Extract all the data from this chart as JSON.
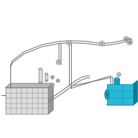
{
  "bg_color": "#ffffff",
  "line_color": "#999999",
  "line_color_dark": "#777777",
  "highlight_color": "#29b8d8",
  "highlight_mid": "#1a9ab8",
  "highlight_dark": "#0e7a96",
  "part_color": "#bbbbbb",
  "part_light": "#dddddd",
  "part_dark": "#999999",
  "fig_width": 2.0,
  "fig_height": 2.0,
  "dpi": 100
}
